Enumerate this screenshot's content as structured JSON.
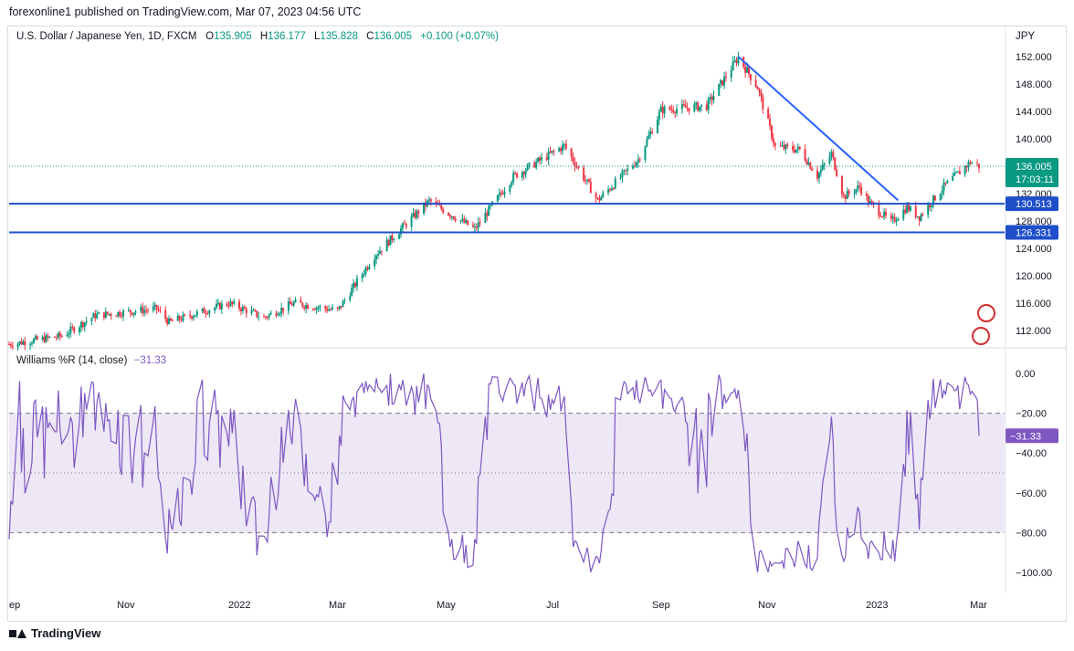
{
  "header": {
    "published_line": "forexonline1 published on TradingView.com, Mar 07, 2023 04:56 UTC"
  },
  "symbol": {
    "title": "U.S. Dollar / Japanese Yen, 1D, FXCM",
    "o_label": "O",
    "o": "135.905",
    "h_label": "H",
    "h": "136.177",
    "l_label": "L",
    "l": "135.828",
    "c_label": "C",
    "c": "136.005",
    "change": "+0.100 (+0.07%)",
    "currency": "JPY"
  },
  "price_axis": {
    "ticks": [
      "152.000",
      "148.000",
      "144.000",
      "140.000",
      "132.000",
      "128.000",
      "124.000",
      "120.000",
      "116.000",
      "112.000"
    ],
    "current_price": "136.005",
    "countdown": "17:03:11",
    "level_1": "130.513",
    "level_2": "126.331"
  },
  "indicator": {
    "name": "Williams %R (14, close)",
    "value": "−31.33",
    "ticks": [
      "0.00",
      "−20.00",
      "−40.00",
      "−60.00",
      "−80.00",
      "−100.00"
    ],
    "current_badge": "−31.33"
  },
  "time_axis": [
    "ep",
    "Nov",
    "2022",
    "Mar",
    "May",
    "Jul",
    "Sep",
    "Nov",
    "2023",
    "Mar"
  ],
  "footer": {
    "brand": "TradingView"
  },
  "colors": {
    "up": "#089981",
    "down": "#f23645",
    "level_line": "#1e4fc9",
    "trend_line": "#2962ff",
    "wr_line": "#7e57c2",
    "wr_band": "#ede7f6",
    "badge_price": "#089981",
    "badge_level": "#1e4fc9",
    "badge_wr": "#7e57c2"
  },
  "chart_data": [
    {
      "type": "candlestick",
      "title": "U.S. Dollar / Japanese Yen, 1D, FXCM",
      "ylim": [
        109.5,
        154.0
      ],
      "x_range": [
        "2021-09-01",
        "2023-03-07"
      ],
      "horizontal_levels": [
        130.513,
        126.331
      ],
      "trend_line": [
        {
          "date": "2022-10-21",
          "price": 152.0
        },
        {
          "date": "2023-01-20",
          "price": 131.0
        }
      ],
      "anchors": [
        {
          "date": "2021-09-01",
          "close": 110.0
        },
        {
          "date": "2021-10-01",
          "close": 111.2
        },
        {
          "date": "2021-10-20",
          "close": 114.2
        },
        {
          "date": "2021-11-24",
          "close": 115.2
        },
        {
          "date": "2021-12-01",
          "close": 113.2
        },
        {
          "date": "2022-01-04",
          "close": 116.0
        },
        {
          "date": "2022-01-24",
          "close": 113.9
        },
        {
          "date": "2022-02-10",
          "close": 116.0
        },
        {
          "date": "2022-03-07",
          "close": 114.9
        },
        {
          "date": "2022-03-28",
          "close": 123.0
        },
        {
          "date": "2022-04-28",
          "close": 130.9
        },
        {
          "date": "2022-05-24",
          "close": 126.8
        },
        {
          "date": "2022-06-15",
          "close": 134.5
        },
        {
          "date": "2022-07-14",
          "close": 139.0
        },
        {
          "date": "2022-08-02",
          "close": 131.0
        },
        {
          "date": "2022-08-25",
          "close": 137.0
        },
        {
          "date": "2022-09-07",
          "close": 144.2
        },
        {
          "date": "2022-10-03",
          "close": 144.8
        },
        {
          "date": "2022-10-21",
          "close": 151.9
        },
        {
          "date": "2022-11-01",
          "close": 147.5
        },
        {
          "date": "2022-11-11",
          "close": 138.8
        },
        {
          "date": "2022-11-25",
          "close": 138.4
        },
        {
          "date": "2022-12-05",
          "close": 134.6
        },
        {
          "date": "2022-12-13",
          "close": 137.8
        },
        {
          "date": "2022-12-20",
          "close": 131.5
        },
        {
          "date": "2022-12-29",
          "close": 133.0
        },
        {
          "date": "2023-01-03",
          "close": 130.8
        },
        {
          "date": "2023-01-16",
          "close": 127.8
        },
        {
          "date": "2023-01-25",
          "close": 130.0
        },
        {
          "date": "2023-02-01",
          "close": 128.6
        },
        {
          "date": "2023-02-15",
          "close": 133.0
        },
        {
          "date": "2023-03-02",
          "close": 136.6
        },
        {
          "date": "2023-03-07",
          "close": 136.0
        }
      ]
    },
    {
      "type": "line",
      "title": "Williams %R (14, close)",
      "ylim": [
        -100,
        0
      ],
      "levels": [
        -20,
        -50,
        -80
      ],
      "last_value": -31.33
    }
  ]
}
